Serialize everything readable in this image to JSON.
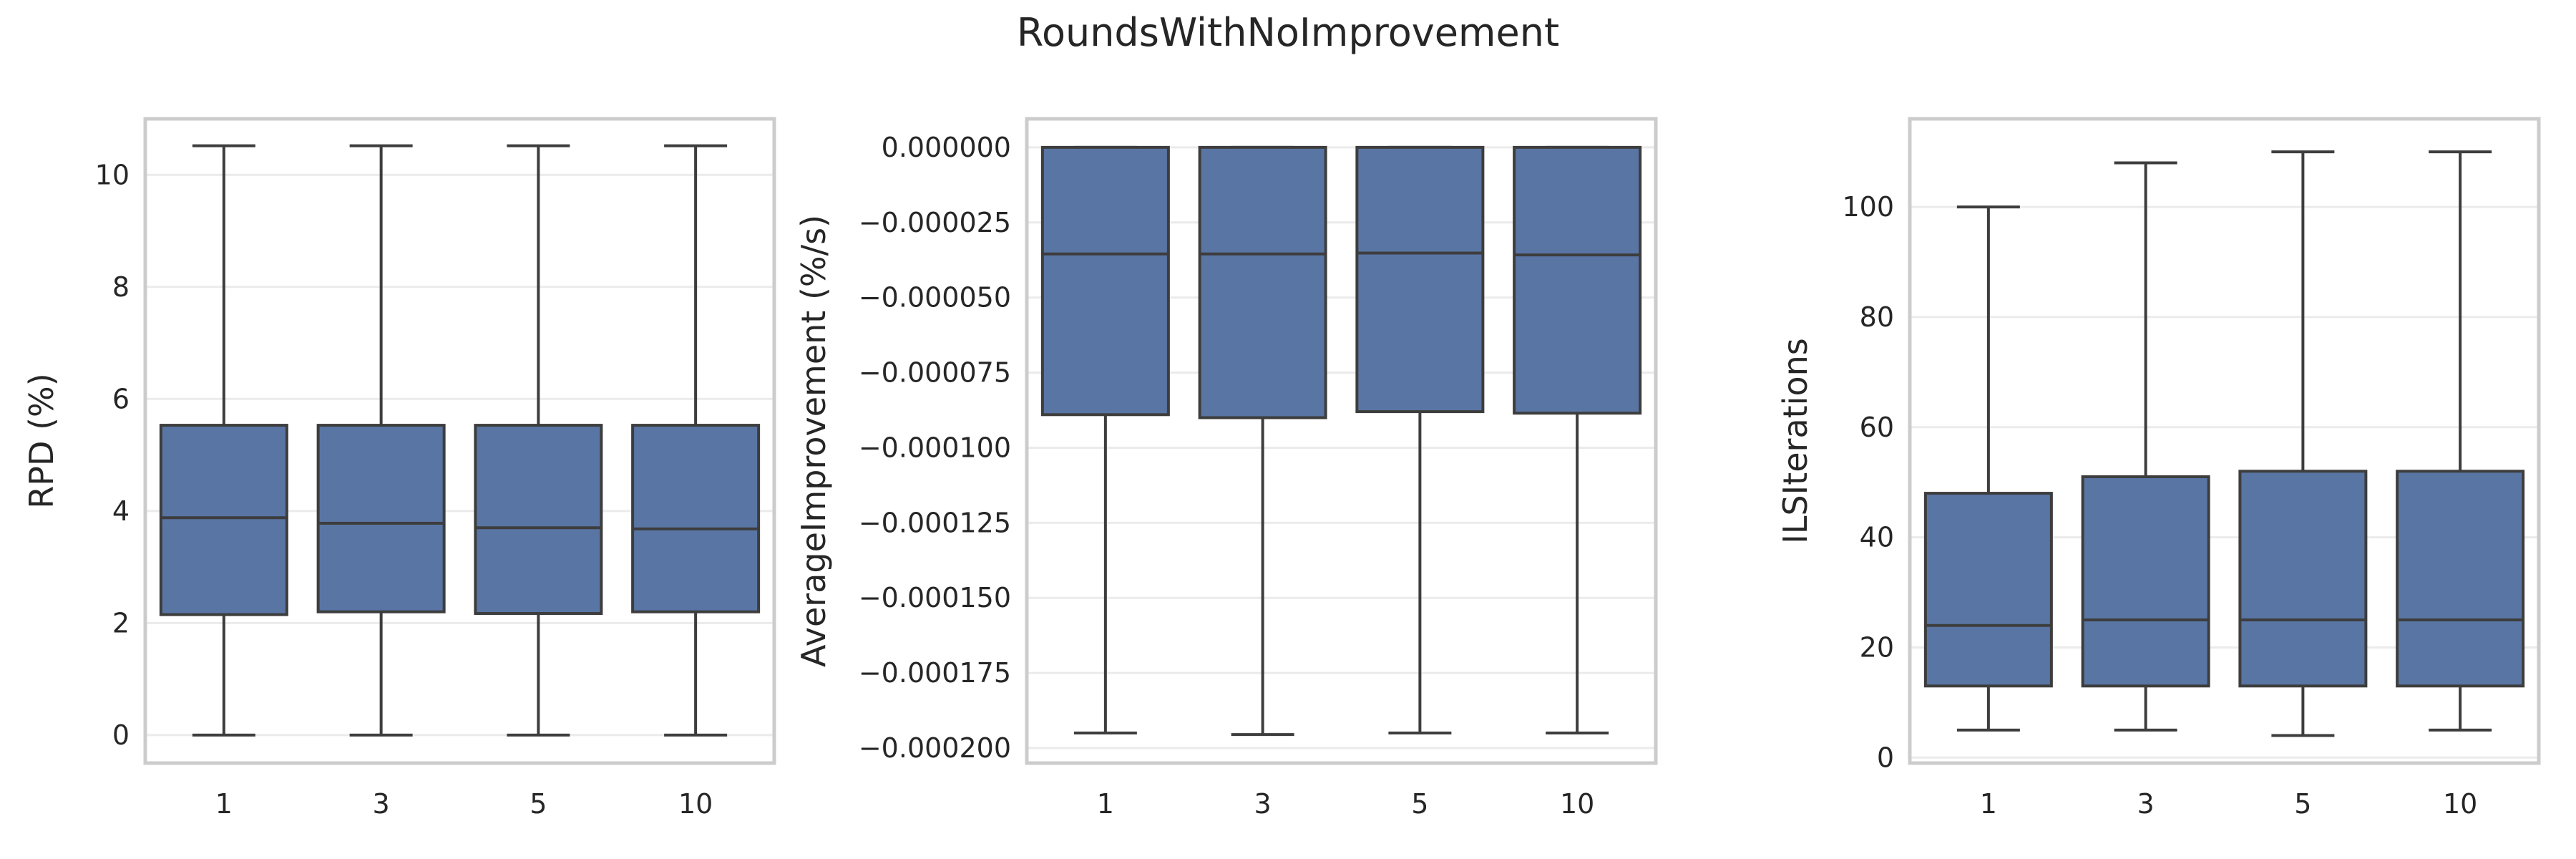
{
  "suptitle": "RoundsWithNoImprovement",
  "colors": {
    "box_fill": "#5975a4",
    "line": "#3d3d3d",
    "frame": "#cccccc",
    "grid": "#ebebeb"
  },
  "chart_data": [
    {
      "type": "box",
      "ylabel": "RPD (%)",
      "xlabel": "",
      "categories": [
        "1",
        "3",
        "5",
        "10"
      ],
      "ylim": [
        -0.5,
        11.0
      ],
      "yticks": [
        0,
        2,
        4,
        6,
        8,
        10
      ],
      "ytick_labels": [
        "0",
        "2",
        "4",
        "6",
        "8",
        "10"
      ],
      "grid": true,
      "boxes": [
        {
          "whislo": 0.0,
          "q1": 2.15,
          "med": 3.88,
          "q3": 5.53,
          "whishi": 10.52
        },
        {
          "whislo": 0.0,
          "q1": 2.2,
          "med": 3.78,
          "q3": 5.53,
          "whishi": 10.52
        },
        {
          "whislo": 0.0,
          "q1": 2.17,
          "med": 3.7,
          "q3": 5.53,
          "whishi": 10.52
        },
        {
          "whislo": 0.0,
          "q1": 2.2,
          "med": 3.68,
          "q3": 5.53,
          "whishi": 10.52
        }
      ]
    },
    {
      "type": "box",
      "ylabel": "AverageImprovement (%/s)",
      "xlabel": "",
      "categories": [
        "1",
        "3",
        "5",
        "10"
      ],
      "ylim": [
        -0.000205,
        9.5e-06
      ],
      "yticks": [
        0.0,
        -2.5e-05,
        -5e-05,
        -7.5e-05,
        -0.0001,
        -0.000125,
        -0.00015,
        -0.000175,
        -0.0002
      ],
      "ytick_labels": [
        "0.000000",
        "−0.000025",
        "−0.000050",
        "−0.000075",
        "−0.000100",
        "−0.000125",
        "−0.000150",
        "−0.000175",
        "−0.000200"
      ],
      "grid": true,
      "boxes": [
        {
          "whislo": -0.000195,
          "q1": -8.9e-05,
          "med": -3.55e-05,
          "q3": 0.0,
          "whishi": 0.0
        },
        {
          "whislo": -0.0001955,
          "q1": -9e-05,
          "med": -3.55e-05,
          "q3": 0.0,
          "whishi": 0.0
        },
        {
          "whislo": -0.000195,
          "q1": -8.8e-05,
          "med": -3.52e-05,
          "q3": 0.0,
          "whishi": 0.0
        },
        {
          "whislo": -0.000195,
          "q1": -8.85e-05,
          "med": -3.58e-05,
          "q3": 0.0,
          "whishi": 0.0
        }
      ]
    },
    {
      "type": "box",
      "ylabel": "ILSIterations",
      "xlabel": "",
      "categories": [
        "1",
        "3",
        "5",
        "10"
      ],
      "ylim": [
        -1,
        116
      ],
      "yticks": [
        0,
        20,
        40,
        60,
        80,
        100
      ],
      "ytick_labels": [
        "0",
        "20",
        "40",
        "60",
        "80",
        "100"
      ],
      "grid": true,
      "boxes": [
        {
          "whislo": 5,
          "q1": 13,
          "med": 24,
          "q3": 48,
          "whishi": 100
        },
        {
          "whislo": 5,
          "q1": 13,
          "med": 25,
          "q3": 51,
          "whishi": 108
        },
        {
          "whislo": 4,
          "q1": 13,
          "med": 25,
          "q3": 52,
          "whishi": 110
        },
        {
          "whislo": 5,
          "q1": 13,
          "med": 25,
          "q3": 52,
          "whishi": 110
        }
      ]
    }
  ]
}
